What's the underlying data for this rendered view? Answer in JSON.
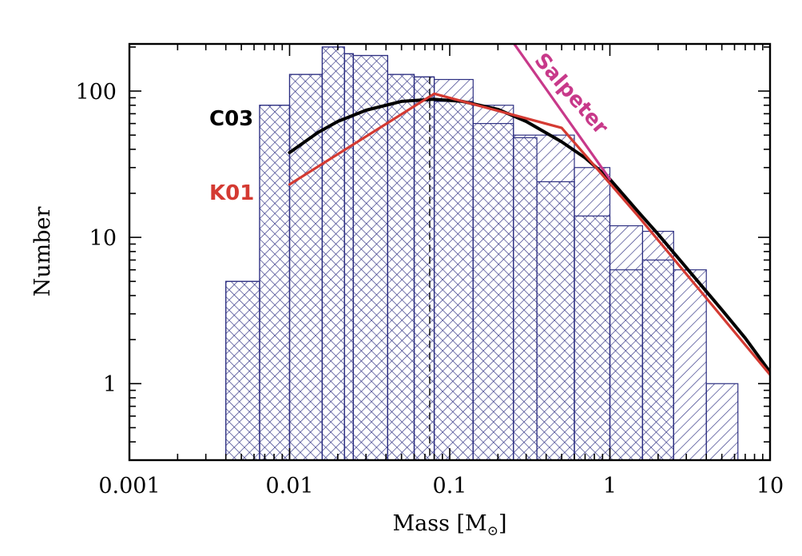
{
  "chart_data": {
    "type": "bar",
    "xscale": "log",
    "yscale": "log",
    "xlim": [
      0.001,
      10
    ],
    "ylim": [
      0.3,
      210
    ],
    "xlabel": "Mass [M",
    "xlabel_sub": "⊙",
    "xlabel_close": "]",
    "ylabel": "Number",
    "x_ticks": [
      {
        "value": 0.001,
        "label": "0.001"
      },
      {
        "value": 0.01,
        "label": "0.01"
      },
      {
        "value": 0.1,
        "label": "0.1"
      },
      {
        "value": 1,
        "label": "1"
      },
      {
        "value": 10,
        "label": "10"
      }
    ],
    "y_ticks": [
      {
        "value": 1,
        "label": "1"
      },
      {
        "value": 10,
        "label": "10"
      },
      {
        "value": 100,
        "label": "100"
      }
    ],
    "dashed_vline_x": 0.075,
    "histograms": [
      {
        "hatch": "single",
        "bins": [
          [
            0.004,
            0.0065,
            5
          ],
          [
            0.0065,
            0.01,
            80
          ],
          [
            0.01,
            0.016,
            130
          ],
          [
            0.016,
            0.022,
            200
          ],
          [
            0.022,
            0.025,
            180
          ],
          [
            0.025,
            0.041,
            175
          ],
          [
            0.041,
            0.06,
            130
          ],
          [
            0.06,
            0.08,
            125
          ],
          [
            0.08,
            0.14,
            120
          ],
          [
            0.14,
            0.25,
            80
          ],
          [
            0.25,
            0.6,
            50
          ],
          [
            0.6,
            1.0,
            30
          ],
          [
            1.0,
            1.6,
            12
          ],
          [
            1.6,
            2.5,
            11
          ],
          [
            2.5,
            4.0,
            6
          ],
          [
            4.0,
            6.3,
            1
          ]
        ]
      },
      {
        "hatch": "cross",
        "bins": [
          [
            0.004,
            0.0065,
            5
          ],
          [
            0.0065,
            0.01,
            80
          ],
          [
            0.01,
            0.016,
            130
          ],
          [
            0.016,
            0.022,
            200
          ],
          [
            0.022,
            0.025,
            180
          ],
          [
            0.025,
            0.041,
            175
          ],
          [
            0.041,
            0.06,
            130
          ],
          [
            0.06,
            0.08,
            125
          ],
          [
            0.08,
            0.14,
            85
          ],
          [
            0.14,
            0.25,
            60
          ],
          [
            0.25,
            0.35,
            48
          ],
          [
            0.35,
            0.6,
            24
          ],
          [
            0.6,
            1.0,
            14
          ],
          [
            1.0,
            1.6,
            6
          ],
          [
            1.6,
            2.5,
            7
          ]
        ]
      }
    ],
    "series": [
      {
        "name": "C03",
        "color": "#000000",
        "points": [
          [
            0.01,
            38
          ],
          [
            0.015,
            52
          ],
          [
            0.02,
            62
          ],
          [
            0.03,
            74
          ],
          [
            0.05,
            85
          ],
          [
            0.079,
            88
          ],
          [
            0.12,
            85
          ],
          [
            0.2,
            75
          ],
          [
            0.3,
            62
          ],
          [
            0.5,
            45
          ],
          [
            0.7,
            35
          ],
          [
            1.0,
            25
          ],
          [
            1.5,
            15
          ],
          [
            2.0,
            10.5
          ],
          [
            3.0,
            6.2
          ],
          [
            5.0,
            3.2
          ],
          [
            7.0,
            2.05
          ],
          [
            10.0,
            1.2
          ]
        ]
      },
      {
        "name": "K01",
        "color": "#d43a32",
        "points": [
          [
            0.01,
            23
          ],
          [
            0.08,
            96
          ],
          [
            0.5,
            56
          ],
          [
            1.5,
            14
          ],
          [
            10.0,
            1.15
          ]
        ]
      },
      {
        "name": "Salpeter",
        "color": "#c8398a",
        "points": [
          [
            0.22,
            260
          ],
          [
            1.0,
            25
          ]
        ]
      }
    ]
  }
}
